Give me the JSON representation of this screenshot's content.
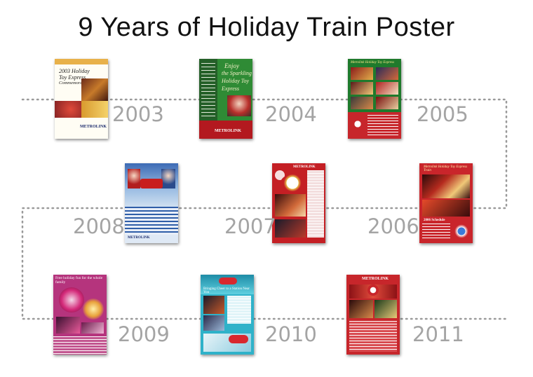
{
  "title": "9 Years of Holiday Train Poster",
  "posters": [
    {
      "year": "2003",
      "text": [
        "2003 Holiday",
        "Toy Express",
        "Commemorative Book"
      ],
      "brand": "METROLINK"
    },
    {
      "year": "2004",
      "text": [
        "Enjoy",
        "the Sparkling",
        "Holiday Toy",
        "Express"
      ],
      "brand": "METROLINK"
    },
    {
      "year": "2005",
      "text": [
        "Metrolink Holiday Toy Express"
      ]
    },
    {
      "year": "2006",
      "text": [
        "Metrolink Holiday Toy Express Train",
        "2006 Schedule"
      ]
    },
    {
      "year": "2007",
      "text": [
        "METROLINK"
      ]
    },
    {
      "year": "2008",
      "text": [
        "METROLINK"
      ]
    },
    {
      "year": "2009",
      "text": [
        "Free holiday fun for the whole family"
      ]
    },
    {
      "year": "2010",
      "text": [
        "Bringing Cheer to a Station Near You"
      ]
    },
    {
      "year": "2011",
      "text": [
        "METROLINK"
      ]
    }
  ],
  "colors": {
    "connector": "#9a9a9a",
    "year_label": "#a4a4a4"
  }
}
